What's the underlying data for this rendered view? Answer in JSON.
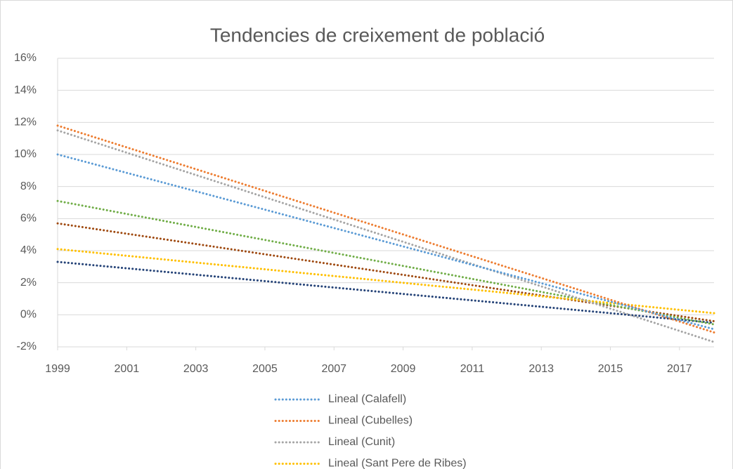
{
  "chart_data": {
    "type": "line",
    "title": "Tendencies de creixement de població",
    "x": [
      1999,
      2018
    ],
    "xlim": [
      1999,
      2018
    ],
    "xticks": [
      1999,
      2001,
      2003,
      2005,
      2007,
      2009,
      2011,
      2013,
      2015,
      2017
    ],
    "ylim": [
      -2,
      16
    ],
    "yticks": [
      {
        "value": -2,
        "label": "-2%"
      },
      {
        "value": 0,
        "label": "0%"
      },
      {
        "value": 2,
        "label": "2%"
      },
      {
        "value": 4,
        "label": "4%"
      },
      {
        "value": 6,
        "label": "6%"
      },
      {
        "value": 8,
        "label": "8%"
      },
      {
        "value": 10,
        "label": "10%"
      },
      {
        "value": 12,
        "label": "12%"
      },
      {
        "value": 14,
        "label": "14%"
      },
      {
        "value": 16,
        "label": "16%"
      }
    ],
    "grid": true,
    "legend": "bottom",
    "series": [
      {
        "name": "Lineal (Calafell)",
        "color": "#5b9bd5",
        "values": [
          10.0,
          -0.9
        ]
      },
      {
        "name": "Lineal (Cubelles)",
        "color": "#ed7d31",
        "values": [
          11.8,
          -1.1
        ]
      },
      {
        "name": "Lineal (Cunit)",
        "color": "#a5a5a5",
        "values": [
          11.5,
          -1.7
        ]
      },
      {
        "name": "Lineal (Sant Pere de Ribes)",
        "color": "#ffc000",
        "values": [
          4.1,
          0.1
        ]
      },
      {
        "color": "#70ad47",
        "values": [
          7.1,
          -0.6
        ]
      },
      {
        "color": "#9e480e",
        "values": [
          5.7,
          -0.4
        ]
      },
      {
        "color": "#264478",
        "values": [
          3.3,
          -0.5
        ]
      }
    ]
  }
}
